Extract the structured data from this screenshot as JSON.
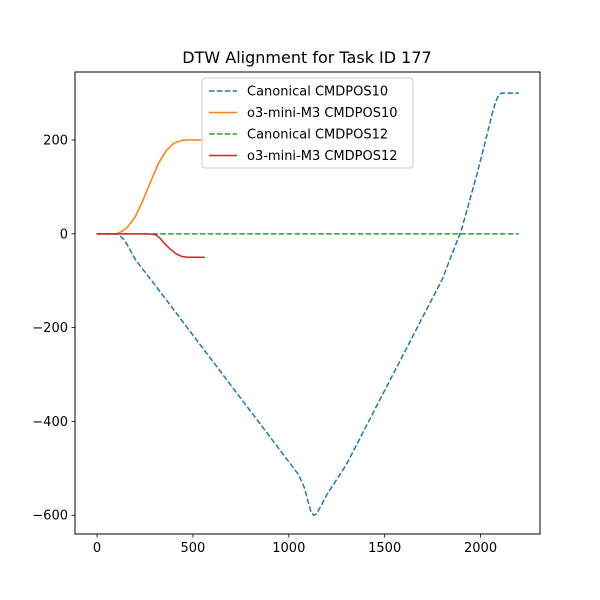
{
  "chart_data": {
    "type": "line",
    "title": "DTW Alignment for Task ID 177",
    "xlabel": "",
    "ylabel": "",
    "xlim": [
      -115,
      2310
    ],
    "ylim": [
      -640,
      345
    ],
    "xticks": [
      0,
      500,
      1000,
      1500,
      2000
    ],
    "yticks": [
      200,
      0,
      -200,
      -400,
      -600
    ],
    "xtick_labels": [
      "0",
      "500",
      "1000",
      "1500",
      "2000"
    ],
    "ytick_labels": [
      "200",
      "0",
      "−200",
      "−400",
      "−600"
    ],
    "grid": false,
    "legend_position": "top-center",
    "series": [
      {
        "name": "Canonical CMDPOS10",
        "color": "#1f77b4",
        "dash": "dashed",
        "x": [
          0,
          100,
          120,
          140,
          160,
          200,
          300,
          400,
          500,
          600,
          700,
          800,
          900,
          1000,
          1050,
          1080,
          1100,
          1115,
          1130,
          1145,
          1165,
          1200,
          1300,
          1400,
          1500,
          1600,
          1700,
          1800,
          1900,
          1980,
          2030,
          2060,
          2080,
          2095,
          2110,
          2200
        ],
        "y": [
          0,
          0,
          -4,
          -12,
          -25,
          -55,
          -108,
          -162,
          -216,
          -270,
          -324,
          -378,
          -432,
          -486,
          -513,
          -540,
          -570,
          -592,
          -600,
          -597,
          -582,
          -555,
          -492,
          -413,
          -334,
          -255,
          -176,
          -97,
          8,
          125,
          205,
          255,
          283,
          296,
          300,
          300
        ]
      },
      {
        "name": "o3-mini-M3 CMDPOS10",
        "color": "#ff7f0e",
        "dash": "solid",
        "x": [
          0,
          100,
          130,
          160,
          200,
          240,
          280,
          320,
          360,
          400,
          440,
          470,
          490,
          520,
          560
        ],
        "y": [
          0,
          0,
          5,
          15,
          37,
          72,
          112,
          150,
          177,
          193,
          199,
          200,
          200,
          200,
          200
        ]
      },
      {
        "name": "Canonical CMDPOS12",
        "color": "#2ca02c",
        "dash": "dashed",
        "x": [
          0,
          2200
        ],
        "y": [
          0,
          0
        ]
      },
      {
        "name": "o3-mini-M3 CMDPOS12",
        "color": "#d62728",
        "dash": "solid",
        "x": [
          0,
          250,
          290,
          310,
          330,
          350,
          380,
          410,
          440,
          470,
          500,
          560
        ],
        "y": [
          0,
          0,
          -1,
          -3,
          -10,
          -20,
          -32,
          -42,
          -48,
          -50,
          -50,
          -50
        ]
      }
    ]
  }
}
